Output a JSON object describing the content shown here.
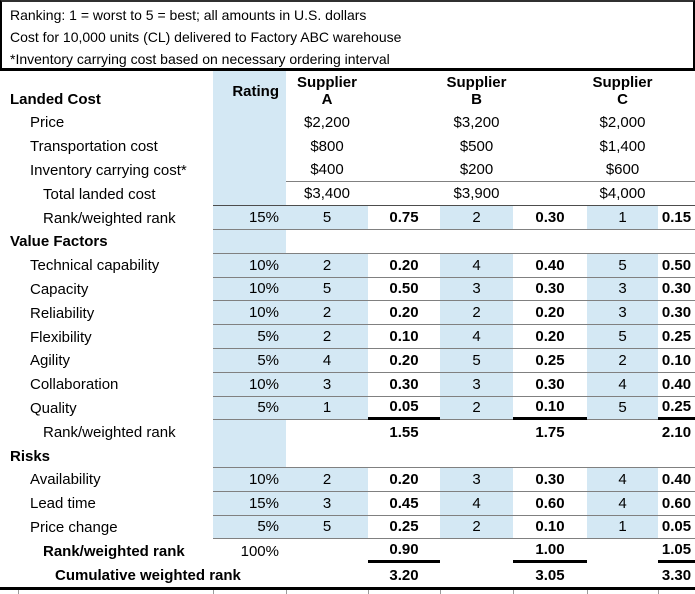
{
  "colors": {
    "highlight": "#d4e8f4",
    "line": "#808080",
    "line_dark": "#4d4d4d",
    "frame": "#000000"
  },
  "notes": [
    "Ranking: 1 = worst to 5 = best; all amounts in U.S. dollars",
    "Cost for 10,000 units (CL) delivered to Factory ABC warehouse",
    "*Inventory carrying cost based on necessary ordering interval"
  ],
  "table": {
    "rating_header": "Rating",
    "sections": {
      "landed_cost": "Landed Cost"
    },
    "suppliers": [
      {
        "line1": "Supplier",
        "line2": "A"
      },
      {
        "line1": "Supplier",
        "line2": "B"
      },
      {
        "line1": "Supplier",
        "line2": "C"
      }
    ],
    "rows": [
      {
        "label": "Price",
        "indent": 2,
        "rating": "",
        "ratingBg": true,
        "a": [
          "$2,200",
          ""
        ],
        "b": [
          "$3,200",
          ""
        ],
        "c": [
          "$2,000",
          ""
        ],
        "line": "none"
      },
      {
        "label": "Transportation cost",
        "indent": 2,
        "rating": "",
        "ratingBg": true,
        "a": [
          "$800",
          ""
        ],
        "b": [
          "$500",
          ""
        ],
        "c": [
          "$1,400",
          ""
        ],
        "line": "none"
      },
      {
        "label": "Inventory carrying cost*",
        "indent": 2,
        "rating": "",
        "ratingBg": true,
        "a": [
          "$400",
          ""
        ],
        "b": [
          "$200",
          ""
        ],
        "c": [
          "$600",
          ""
        ],
        "line": "values"
      },
      {
        "label": "Total landed cost",
        "indent": 3,
        "rating": "",
        "ratingBg": true,
        "a": [
          "$3,400",
          ""
        ],
        "b": [
          "$3,900",
          ""
        ],
        "c": [
          "$4,000",
          ""
        ],
        "line": "full-dark"
      },
      {
        "label": "Rank/weighted rank",
        "indent": 3,
        "rating": "15%",
        "ratingBg": true,
        "rankBg": true,
        "a": [
          "5",
          "0.75"
        ],
        "b": [
          "2",
          "0.30"
        ],
        "c": [
          "1",
          "0.15"
        ],
        "line": "full"
      },
      {
        "label": "Value Factors",
        "indent": 1,
        "bold": true,
        "rating": "",
        "ratingBg": true,
        "line": "full"
      },
      {
        "label": "Technical capability",
        "indent": 2,
        "rating": "10%",
        "ratingBg": true,
        "rankBg": true,
        "a": [
          "2",
          "0.20"
        ],
        "b": [
          "4",
          "0.40"
        ],
        "c": [
          "5",
          "0.50"
        ],
        "line": "full"
      },
      {
        "label": "Capacity",
        "indent": 2,
        "rating": "10%",
        "ratingBg": true,
        "rankBg": true,
        "a": [
          "5",
          "0.50"
        ],
        "b": [
          "3",
          "0.30"
        ],
        "c": [
          "3",
          "0.30"
        ],
        "line": "full"
      },
      {
        "label": "Reliability",
        "indent": 2,
        "rating": "10%",
        "ratingBg": true,
        "rankBg": true,
        "a": [
          "2",
          "0.20"
        ],
        "b": [
          "2",
          "0.20"
        ],
        "c": [
          "3",
          "0.30"
        ],
        "line": "full"
      },
      {
        "label": "Flexibility",
        "indent": 2,
        "rating": "5%",
        "ratingBg": true,
        "rankBg": true,
        "a": [
          "2",
          "0.10"
        ],
        "b": [
          "4",
          "0.20"
        ],
        "c": [
          "5",
          "0.25"
        ],
        "line": "full"
      },
      {
        "label": "Agility",
        "indent": 2,
        "rating": "5%",
        "ratingBg": true,
        "rankBg": true,
        "a": [
          "4",
          "0.20"
        ],
        "b": [
          "5",
          "0.25"
        ],
        "c": [
          "2",
          "0.10"
        ],
        "line": "full"
      },
      {
        "label": "Collaboration",
        "indent": 2,
        "rating": "10%",
        "ratingBg": true,
        "rankBg": true,
        "a": [
          "3",
          "0.30"
        ],
        "b": [
          "3",
          "0.30"
        ],
        "c": [
          "4",
          "0.40"
        ],
        "line": "full"
      },
      {
        "label": "Quality",
        "indent": 2,
        "rating": "5%",
        "ratingBg": true,
        "rankBg": true,
        "a": [
          "1",
          "0.05"
        ],
        "b": [
          "2",
          "0.10"
        ],
        "c": [
          "5",
          "0.25"
        ],
        "line": "full",
        "thick": true
      },
      {
        "label": "Rank/weighted rank",
        "indent": 3,
        "rating": "",
        "ratingBg": true,
        "a": [
          "",
          "1.55"
        ],
        "b": [
          "",
          "1.75"
        ],
        "c": [
          "",
          "2.10"
        ],
        "line": "none"
      },
      {
        "label": "Risks",
        "indent": 1,
        "bold": true,
        "rating": "",
        "ratingBg": true,
        "line": "full"
      },
      {
        "label": "Availability",
        "indent": 2,
        "rating": "10%",
        "ratingBg": true,
        "rankBg": true,
        "a": [
          "2",
          "0.20"
        ],
        "b": [
          "3",
          "0.30"
        ],
        "c": [
          "4",
          "0.40"
        ],
        "line": "full"
      },
      {
        "label": "Lead time",
        "indent": 2,
        "rating": "15%",
        "ratingBg": true,
        "rankBg": true,
        "a": [
          "3",
          "0.45"
        ],
        "b": [
          "4",
          "0.60"
        ],
        "c": [
          "4",
          "0.60"
        ],
        "line": "full"
      },
      {
        "label": "Price change",
        "indent": 2,
        "rating": "5%",
        "ratingBg": true,
        "rankBg": true,
        "a": [
          "5",
          "0.25"
        ],
        "b": [
          "2",
          "0.10"
        ],
        "c": [
          "1",
          "0.05"
        ],
        "line": "full"
      },
      {
        "label": "Rank/weighted rank",
        "indent": 3,
        "bold": true,
        "rating": "100%",
        "ratingBg": false,
        "a": [
          "",
          "0.90"
        ],
        "b": [
          "",
          "1.00"
        ],
        "c": [
          "",
          "1.05"
        ],
        "line": "none",
        "thick": true
      },
      {
        "label": "Cumulative weighted rank",
        "indent": 4,
        "bold": true,
        "rating": "",
        "ratingBg": false,
        "a": [
          "",
          "3.20"
        ],
        "b": [
          "",
          "3.05"
        ],
        "c": [
          "",
          "3.30"
        ],
        "line": "none"
      }
    ]
  },
  "bottom_tick_positions": [
    18,
    213,
    286,
    368,
    440,
    513,
    587,
    658
  ]
}
